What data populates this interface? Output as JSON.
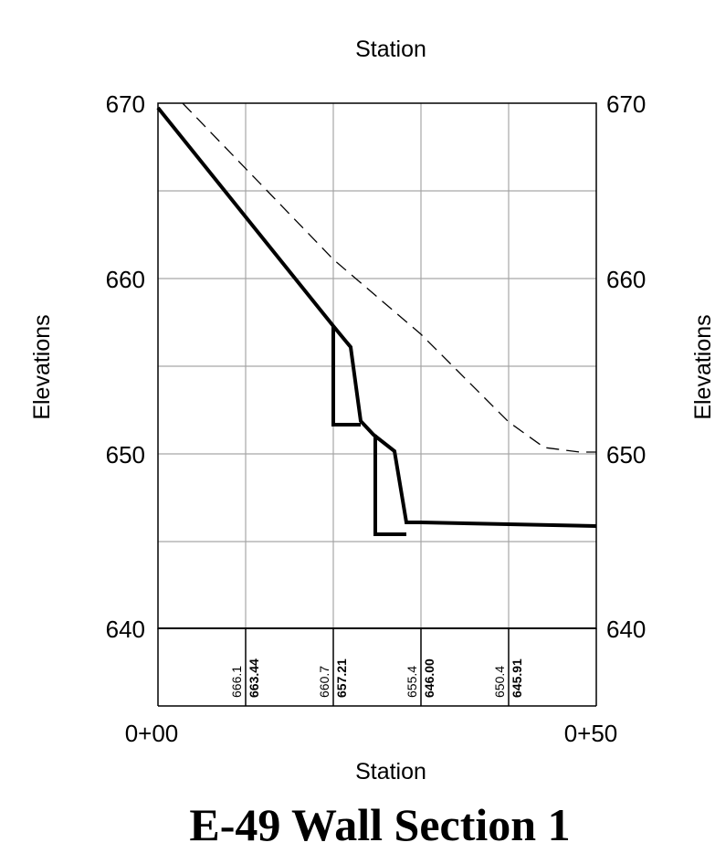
{
  "header": {
    "top_axis_label": "Station"
  },
  "axes": {
    "left_label": "Elevations",
    "right_label": "Elevations",
    "bottom_label": "Station",
    "elevation_ticks": [
      "670",
      "660",
      "650",
      "640"
    ],
    "station_start": "0+00",
    "station_end": "0+50"
  },
  "chart_data": {
    "type": "line",
    "title": "E-49 Wall Section 1",
    "xlabel": "Station",
    "ylabel": "Elevations",
    "xlim": [
      0,
      50
    ],
    "ylim": [
      640,
      670
    ],
    "grid": true,
    "series": [
      {
        "style": "solid-thick",
        "x": [
          0,
          20,
          20,
          22,
          22.5,
          20,
          20
        ],
        "y": [
          669.7,
          657.2,
          651.7,
          651.7,
          656,
          657.2,
          651.7
        ]
      },
      {
        "style": "solid-thick",
        "x": [
          0,
          20,
          22.5,
          25,
          27,
          28,
          29,
          50
        ],
        "y": [
          669.7,
          657.2,
          651.7,
          651,
          650,
          645.3,
          646,
          645.8
        ]
      },
      {
        "style": "dashed",
        "x": [
          3,
          20,
          30,
          40,
          44,
          48,
          50
        ],
        "y": [
          670,
          661,
          655.4,
          650.4,
          648.9,
          648.6,
          648.6
        ]
      }
    ],
    "stations_table": [
      {
        "existing": "666.1",
        "proposed": "663.44"
      },
      {
        "existing": "660.7",
        "proposed": "657.21"
      },
      {
        "existing": "655.4",
        "proposed": "646.00"
      },
      {
        "existing": "650.4",
        "proposed": "645.91"
      }
    ]
  }
}
